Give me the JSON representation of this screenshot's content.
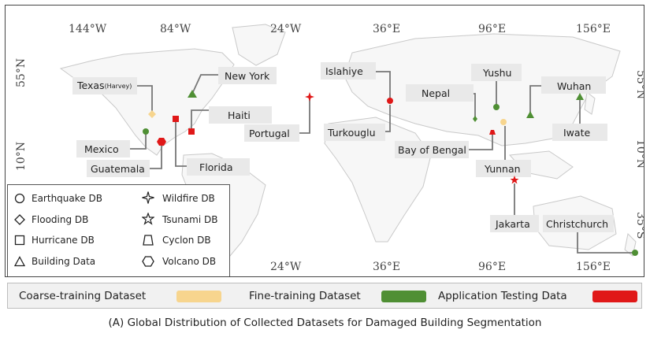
{
  "top_longitudes": [
    "144°W",
    "84°W",
    "24°W",
    "36°E",
    "96°E",
    "156°E"
  ],
  "bottom_longitudes": [
    "24°W",
    "36°E",
    "96°E",
    "156°E"
  ],
  "left_latitudes": [
    "55°N",
    "10°N"
  ],
  "right_latitudes": [
    "55°N",
    "10°N",
    "35°S"
  ],
  "locations": {
    "texas": {
      "name": "Texas",
      "sub": "(Harvey)"
    },
    "new_york": "New York",
    "haiti": "Haiti",
    "mexico": "Mexico",
    "guatemala": "Guatemala",
    "florida": "Florida",
    "portugal": "Portugal",
    "islahiye": "Islahiye",
    "turkouglu": "Turkouglu",
    "nepal": "Nepal",
    "yushu": "Yushu",
    "bay_of_bengal": "Bay of Bengal",
    "yunnan": "Yunnan",
    "jakarta": "Jakarta",
    "wuhan": "Wuhan",
    "iwate": "Iwate",
    "christchurch": "Christchurch"
  },
  "legend": {
    "earthquake": "Earthquake DB",
    "flooding": "Flooding DB",
    "hurricane": "Hurricane DB",
    "building": "Building Data",
    "wildfire": "Wildfire DB",
    "tsunami": "Tsunami DB",
    "cyclon": "Cyclon DB",
    "volcano": "Volcano DB"
  },
  "datasets": {
    "coarse": {
      "label": "Coarse-training  Dataset",
      "color": "#f7d58e"
    },
    "fine": {
      "label": "Fine-training  Dataset",
      "color": "#4f8f34"
    },
    "application": {
      "label": "Application Testing Data",
      "color": "#e01818"
    }
  },
  "caption": "(A)  Global Distribution of  Collected Datasets for Damaged Building Segmentation"
}
